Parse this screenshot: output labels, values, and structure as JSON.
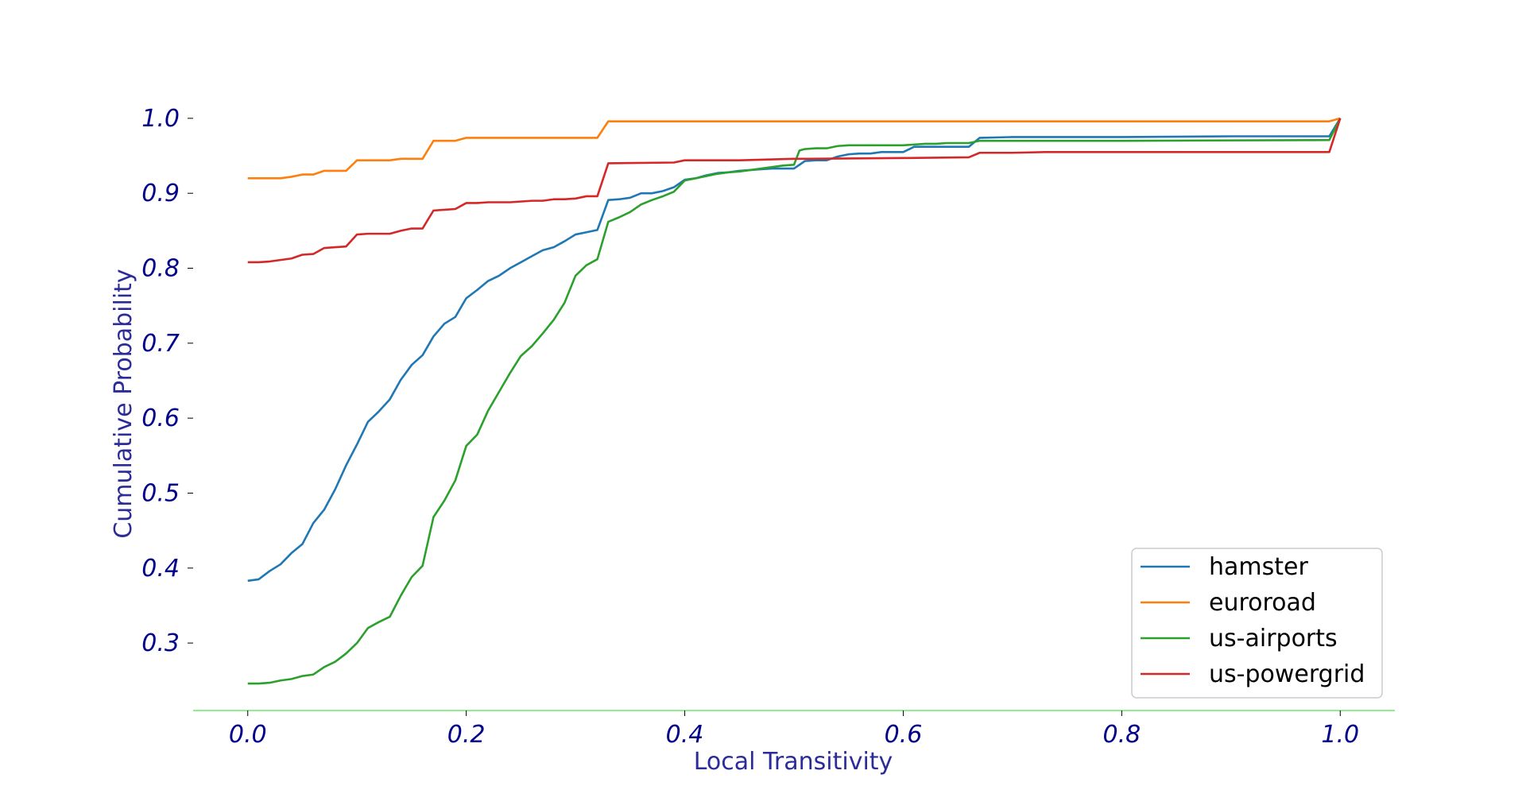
{
  "chart_data": {
    "type": "line",
    "title": "",
    "xlabel": "Local Transitivity",
    "ylabel": "Cumulative Probability",
    "xlim": [
      -0.05,
      1.05
    ],
    "ylim": [
      0.21,
      1.02
    ],
    "xticks": [
      {
        "value": 0.0,
        "label": "0.0"
      },
      {
        "value": 0.2,
        "label": "0.2"
      },
      {
        "value": 0.4,
        "label": "0.4"
      },
      {
        "value": 0.6,
        "label": "0.6"
      },
      {
        "value": 0.8,
        "label": "0.8"
      },
      {
        "value": 1.0,
        "label": "1.0"
      }
    ],
    "yticks": [
      {
        "value": 0.3,
        "label": "0.3"
      },
      {
        "value": 0.4,
        "label": "0.4"
      },
      {
        "value": 0.5,
        "label": "0.5"
      },
      {
        "value": 0.6,
        "label": "0.6"
      },
      {
        "value": 0.7,
        "label": "0.7"
      },
      {
        "value": 0.8,
        "label": "0.8"
      },
      {
        "value": 0.9,
        "label": "0.9"
      },
      {
        "value": 1.0,
        "label": "1.0"
      }
    ],
    "grid": false,
    "legend_position": "bottom-right",
    "colors": {
      "tick_label": "#00008b",
      "axis_label": "#2b2b9a",
      "x_axis_line": "#90ee90"
    },
    "series": [
      {
        "name": "hamster",
        "color": "#1f77b4",
        "points": [
          [
            0.0,
            0.383
          ],
          [
            0.01,
            0.385
          ],
          [
            0.02,
            0.396
          ],
          [
            0.03,
            0.405
          ],
          [
            0.04,
            0.42
          ],
          [
            0.05,
            0.432
          ],
          [
            0.06,
            0.46
          ],
          [
            0.07,
            0.478
          ],
          [
            0.08,
            0.505
          ],
          [
            0.09,
            0.537
          ],
          [
            0.1,
            0.565
          ],
          [
            0.11,
            0.595
          ],
          [
            0.12,
            0.609
          ],
          [
            0.13,
            0.625
          ],
          [
            0.14,
            0.651
          ],
          [
            0.15,
            0.671
          ],
          [
            0.16,
            0.684
          ],
          [
            0.17,
            0.709
          ],
          [
            0.18,
            0.726
          ],
          [
            0.19,
            0.735
          ],
          [
            0.2,
            0.76
          ],
          [
            0.21,
            0.771
          ],
          [
            0.22,
            0.783
          ],
          [
            0.23,
            0.79
          ],
          [
            0.24,
            0.8
          ],
          [
            0.25,
            0.808
          ],
          [
            0.26,
            0.816
          ],
          [
            0.27,
            0.824
          ],
          [
            0.28,
            0.828
          ],
          [
            0.29,
            0.836
          ],
          [
            0.3,
            0.845
          ],
          [
            0.31,
            0.848
          ],
          [
            0.32,
            0.851
          ],
          [
            0.33,
            0.891
          ],
          [
            0.34,
            0.892
          ],
          [
            0.35,
            0.894
          ],
          [
            0.36,
            0.9
          ],
          [
            0.37,
            0.9
          ],
          [
            0.38,
            0.903
          ],
          [
            0.39,
            0.908
          ],
          [
            0.4,
            0.918
          ],
          [
            0.41,
            0.92
          ],
          [
            0.42,
            0.924
          ],
          [
            0.43,
            0.927
          ],
          [
            0.44,
            0.928
          ],
          [
            0.45,
            0.93
          ],
          [
            0.46,
            0.931
          ],
          [
            0.47,
            0.932
          ],
          [
            0.48,
            0.933
          ],
          [
            0.49,
            0.933
          ],
          [
            0.5,
            0.933
          ],
          [
            0.51,
            0.943
          ],
          [
            0.52,
            0.944
          ],
          [
            0.53,
            0.944
          ],
          [
            0.54,
            0.949
          ],
          [
            0.55,
            0.952
          ],
          [
            0.56,
            0.953
          ],
          [
            0.57,
            0.953
          ],
          [
            0.58,
            0.955
          ],
          [
            0.59,
            0.955
          ],
          [
            0.6,
            0.955
          ],
          [
            0.61,
            0.962
          ],
          [
            0.62,
            0.962
          ],
          [
            0.65,
            0.962
          ],
          [
            0.66,
            0.962
          ],
          [
            0.67,
            0.974
          ],
          [
            0.7,
            0.975
          ],
          [
            0.8,
            0.975
          ],
          [
            0.9,
            0.976
          ],
          [
            0.99,
            0.976
          ],
          [
            1.0,
            1.0
          ]
        ]
      },
      {
        "name": "euroroad",
        "color": "#ff7f0e",
        "points": [
          [
            0.0,
            0.92
          ],
          [
            0.03,
            0.92
          ],
          [
            0.04,
            0.922
          ],
          [
            0.05,
            0.925
          ],
          [
            0.06,
            0.925
          ],
          [
            0.07,
            0.93
          ],
          [
            0.09,
            0.93
          ],
          [
            0.1,
            0.944
          ],
          [
            0.13,
            0.944
          ],
          [
            0.14,
            0.946
          ],
          [
            0.16,
            0.946
          ],
          [
            0.17,
            0.97
          ],
          [
            0.19,
            0.97
          ],
          [
            0.2,
            0.974
          ],
          [
            0.32,
            0.974
          ],
          [
            0.33,
            0.996
          ],
          [
            0.99,
            0.996
          ],
          [
            1.0,
            1.0
          ]
        ]
      },
      {
        "name": "us-airports",
        "color": "#2ca02c",
        "points": [
          [
            0.0,
            0.246
          ],
          [
            0.01,
            0.246
          ],
          [
            0.02,
            0.247
          ],
          [
            0.03,
            0.25
          ],
          [
            0.04,
            0.252
          ],
          [
            0.05,
            0.256
          ],
          [
            0.06,
            0.258
          ],
          [
            0.07,
            0.268
          ],
          [
            0.08,
            0.275
          ],
          [
            0.09,
            0.286
          ],
          [
            0.1,
            0.3
          ],
          [
            0.11,
            0.32
          ],
          [
            0.12,
            0.328
          ],
          [
            0.13,
            0.335
          ],
          [
            0.14,
            0.363
          ],
          [
            0.15,
            0.388
          ],
          [
            0.16,
            0.403
          ],
          [
            0.17,
            0.468
          ],
          [
            0.18,
            0.49
          ],
          [
            0.19,
            0.517
          ],
          [
            0.2,
            0.563
          ],
          [
            0.21,
            0.578
          ],
          [
            0.22,
            0.61
          ],
          [
            0.23,
            0.635
          ],
          [
            0.24,
            0.66
          ],
          [
            0.25,
            0.683
          ],
          [
            0.26,
            0.696
          ],
          [
            0.27,
            0.713
          ],
          [
            0.28,
            0.731
          ],
          [
            0.29,
            0.754
          ],
          [
            0.3,
            0.79
          ],
          [
            0.31,
            0.804
          ],
          [
            0.32,
            0.812
          ],
          [
            0.33,
            0.862
          ],
          [
            0.34,
            0.868
          ],
          [
            0.35,
            0.875
          ],
          [
            0.36,
            0.885
          ],
          [
            0.37,
            0.891
          ],
          [
            0.38,
            0.896
          ],
          [
            0.39,
            0.902
          ],
          [
            0.4,
            0.917
          ],
          [
            0.41,
            0.92
          ],
          [
            0.42,
            0.923
          ],
          [
            0.43,
            0.926
          ],
          [
            0.44,
            0.928
          ],
          [
            0.45,
            0.929
          ],
          [
            0.46,
            0.931
          ],
          [
            0.47,
            0.933
          ],
          [
            0.48,
            0.935
          ],
          [
            0.49,
            0.937
          ],
          [
            0.5,
            0.938
          ],
          [
            0.505,
            0.957
          ],
          [
            0.51,
            0.959
          ],
          [
            0.52,
            0.96
          ],
          [
            0.53,
            0.96
          ],
          [
            0.54,
            0.963
          ],
          [
            0.55,
            0.964
          ],
          [
            0.6,
            0.964
          ],
          [
            0.61,
            0.965
          ],
          [
            0.62,
            0.966
          ],
          [
            0.63,
            0.966
          ],
          [
            0.64,
            0.967
          ],
          [
            0.66,
            0.967
          ],
          [
            0.67,
            0.97
          ],
          [
            0.8,
            0.97
          ],
          [
            0.99,
            0.971
          ],
          [
            1.0,
            1.0
          ]
        ]
      },
      {
        "name": "us-powergrid",
        "color": "#d62728",
        "points": [
          [
            0.0,
            0.808
          ],
          [
            0.01,
            0.808
          ],
          [
            0.02,
            0.809
          ],
          [
            0.03,
            0.811
          ],
          [
            0.04,
            0.813
          ],
          [
            0.05,
            0.818
          ],
          [
            0.06,
            0.819
          ],
          [
            0.07,
            0.827
          ],
          [
            0.08,
            0.828
          ],
          [
            0.09,
            0.829
          ],
          [
            0.1,
            0.845
          ],
          [
            0.11,
            0.846
          ],
          [
            0.13,
            0.846
          ],
          [
            0.14,
            0.85
          ],
          [
            0.15,
            0.853
          ],
          [
            0.16,
            0.853
          ],
          [
            0.17,
            0.877
          ],
          [
            0.18,
            0.878
          ],
          [
            0.19,
            0.879
          ],
          [
            0.2,
            0.887
          ],
          [
            0.21,
            0.887
          ],
          [
            0.22,
            0.888
          ],
          [
            0.24,
            0.888
          ],
          [
            0.26,
            0.89
          ],
          [
            0.27,
            0.89
          ],
          [
            0.28,
            0.892
          ],
          [
            0.29,
            0.892
          ],
          [
            0.3,
            0.893
          ],
          [
            0.31,
            0.896
          ],
          [
            0.32,
            0.896
          ],
          [
            0.33,
            0.94
          ],
          [
            0.39,
            0.941
          ],
          [
            0.4,
            0.944
          ],
          [
            0.45,
            0.944
          ],
          [
            0.5,
            0.946
          ],
          [
            0.51,
            0.946
          ],
          [
            0.6,
            0.947
          ],
          [
            0.66,
            0.948
          ],
          [
            0.67,
            0.954
          ],
          [
            0.7,
            0.954
          ],
          [
            0.73,
            0.955
          ],
          [
            0.8,
            0.955
          ],
          [
            0.99,
            0.955
          ],
          [
            1.0,
            1.0
          ]
        ]
      }
    ]
  }
}
